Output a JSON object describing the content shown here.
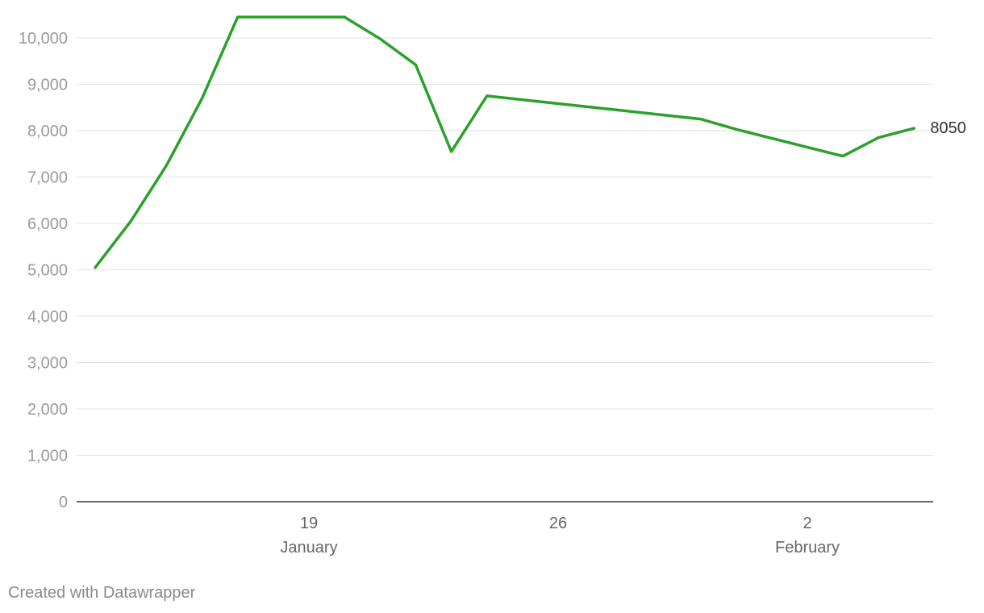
{
  "chart_data": {
    "type": "line",
    "title": "",
    "xlabel": "",
    "ylabel": "",
    "ylim": [
      0,
      10500
    ],
    "y_ticks": [
      0,
      1000,
      2000,
      3000,
      4000,
      5000,
      6000,
      7000,
      8000,
      9000,
      10000
    ],
    "y_tick_labels": [
      "0",
      "1,000",
      "2,000",
      "3,000",
      "4,000",
      "5,000",
      "6,000",
      "7,000",
      "8,000",
      "9,000",
      "10,000"
    ],
    "x_ticks": [
      {
        "date": "2020-01-19",
        "label": "19",
        "sublabel": "January"
      },
      {
        "date": "2020-01-26",
        "label": "26",
        "sublabel": ""
      },
      {
        "date": "2020-02-02",
        "label": "2",
        "sublabel": "February"
      }
    ],
    "grid": true,
    "series": [
      {
        "color": "#2ca02c",
        "end_label": "8050",
        "points": [
          {
            "x": "2020-01-13",
            "y": 5050
          },
          {
            "x": "2020-01-14",
            "y": 6050
          },
          {
            "x": "2020-01-15",
            "y": 7250
          },
          {
            "x": "2020-01-16",
            "y": 8700
          },
          {
            "x": "2020-01-17",
            "y": 10450
          },
          {
            "x": "2020-01-18",
            "y": 10450
          },
          {
            "x": "2020-01-19",
            "y": 10450
          },
          {
            "x": "2020-01-20",
            "y": 10450
          },
          {
            "x": "2020-01-21",
            "y": 9980
          },
          {
            "x": "2020-01-22",
            "y": 9420
          },
          {
            "x": "2020-01-23",
            "y": 7550
          },
          {
            "x": "2020-01-24",
            "y": 8750
          },
          {
            "x": "2020-01-30",
            "y": 8250
          },
          {
            "x": "2020-01-31",
            "y": 8030
          },
          {
            "x": "2020-02-03",
            "y": 7450
          },
          {
            "x": "2020-02-04",
            "y": 7850
          },
          {
            "x": "2020-02-05",
            "y": 8050
          }
        ]
      }
    ]
  },
  "footer": {
    "credit": "Created with Datawrapper"
  }
}
